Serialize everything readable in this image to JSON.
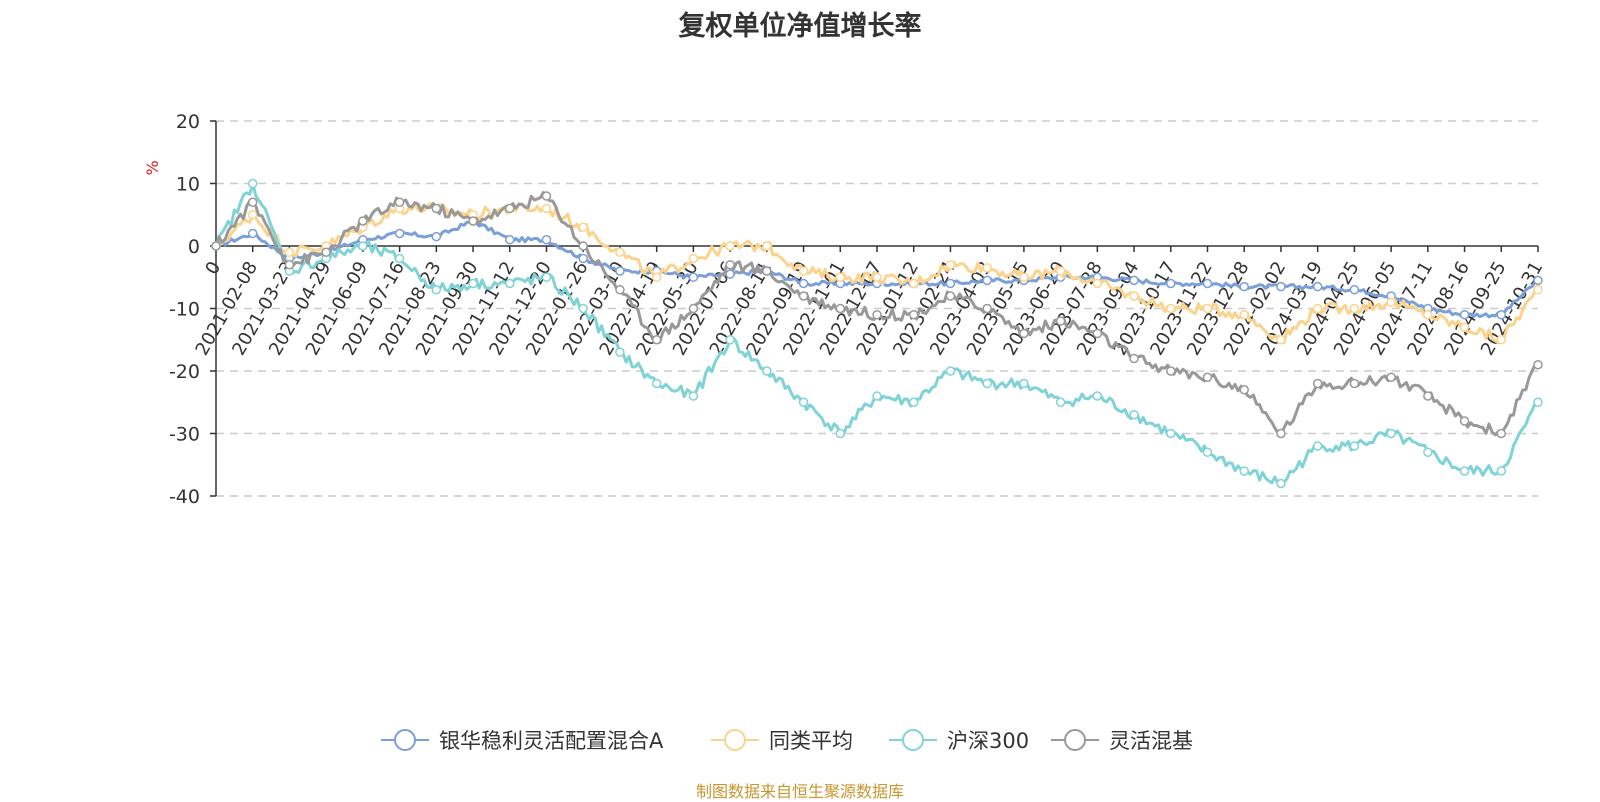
{
  "title": "复权单位净值增长率",
  "source_note": "制图数据来自恒生聚源数据库",
  "colors": {
    "fund": "#7b9fd8",
    "peer_avg": "#fbd38d",
    "hs300": "#7fd3d6",
    "flex_mix": "#999999",
    "ylabel": "#e02020",
    "source": "#c8962e"
  },
  "chart_data": {
    "type": "line",
    "title": "复权单位净值增长率",
    "ylabel": "%",
    "ylim": [
      -40,
      20
    ],
    "yticks": [
      20,
      10,
      0,
      -10,
      -20,
      -30,
      -40
    ],
    "ytick_labels": [
      "20",
      "10",
      "0",
      "-10",
      "-20",
      "-30",
      "-40"
    ],
    "grid": true,
    "legend": "bottom-center",
    "x_labels": [
      "0",
      "2021-02-08",
      "2021-03-23",
      "2021-04-29",
      "2021-06-09",
      "2021-07-16",
      "2021-08-23",
      "2021-09-30",
      "2021-11-12",
      "2021-12-20",
      "2022-01-26",
      "2022-03-10",
      "2022-04-19",
      "2022-05-30",
      "2022-07-06",
      "2022-08-11",
      "2022-09-19",
      "2022-11-01",
      "2022-12-07",
      "2023-01-12",
      "2023-02-24",
      "2023-04-03",
      "2023-05-15",
      "2023-06-20",
      "2023-07-28",
      "2023-09-04",
      "2023-10-17",
      "2023-11-22",
      "2023-12-28",
      "2024-02-02",
      "2024-03-19",
      "2024-04-25",
      "2024-06-05",
      "2024-07-11",
      "2024-08-16",
      "2024-09-25",
      "2024-10-31"
    ],
    "series": [
      {
        "name": "银华稳利灵活配置混合A",
        "color_key": "fund",
        "values": [
          0,
          2,
          -2,
          -1,
          1,
          2,
          1.5,
          4,
          1,
          1,
          -2,
          -4,
          -4,
          -5,
          -4.5,
          -4,
          -6,
          -6,
          -6,
          -6,
          -6,
          -5.5,
          -5.5,
          -5,
          -5,
          -5.5,
          -6,
          -6,
          -6.5,
          -6.5,
          -6.5,
          -7,
          -8,
          -10,
          -11,
          -11,
          -5.5
        ]
      },
      {
        "name": "同类平均",
        "color_key": "peer_avg",
        "values": [
          0,
          5,
          -1,
          0,
          3,
          6,
          6,
          5,
          6,
          6,
          3,
          -1,
          -5,
          -2,
          0,
          0,
          -4,
          -5,
          -5,
          -6,
          -3,
          -3.5,
          -5,
          -4,
          -6,
          -8,
          -10,
          -10,
          -11,
          -15,
          -10,
          -10,
          -9,
          -11,
          -13,
          -15,
          -7
        ]
      },
      {
        "name": "沪深300",
        "color_key": "hs300",
        "values": [
          0,
          10,
          -4,
          -2,
          0,
          -2,
          -7,
          -6,
          -6,
          -5,
          -10,
          -17,
          -22,
          -24,
          -15,
          -20,
          -25,
          -30,
          -24,
          -25,
          -20,
          -22,
          -22,
          -25,
          -24,
          -27,
          -30,
          -33,
          -36,
          -38,
          -32,
          -32,
          -30,
          -33,
          -36,
          -36,
          -25
        ]
      },
      {
        "name": "灵活混基",
        "color_key": "flex_mix",
        "values": [
          0,
          7,
          -3,
          -1,
          4,
          7,
          6,
          4,
          6,
          8,
          0,
          -7,
          -15,
          -10,
          -3,
          -4,
          -8,
          -10,
          -11,
          -11,
          -8,
          -10,
          -14,
          -12,
          -14,
          -18,
          -20,
          -21,
          -23,
          -30,
          -22,
          -22,
          -21,
          -24,
          -28,
          -30,
          -19
        ]
      }
    ]
  }
}
